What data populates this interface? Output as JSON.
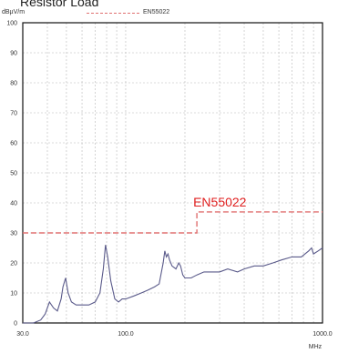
{
  "chart_data": {
    "type": "line",
    "title": "Resistor Load",
    "ylabel": "dBµV/m",
    "xlabel": "MHz",
    "xscale": "log",
    "xlim": [
      30.0,
      1000.0
    ],
    "ylim": [
      0,
      100
    ],
    "grid": true,
    "legend": {
      "position": "top",
      "entries": [
        "EN55022"
      ]
    },
    "x_tick_labels": [
      {
        "value": 30,
        "label": "30.0"
      },
      {
        "value": 100,
        "label": "100.0"
      },
      {
        "value": 1000,
        "label": "1000.0"
      }
    ],
    "y_ticks": [
      0,
      10,
      20,
      30,
      40,
      50,
      60,
      70,
      80,
      90,
      100
    ],
    "limit_label": "EN55022",
    "series": [
      {
        "name": "EN55022",
        "color": "#e07070",
        "style": "dashed",
        "x": [
          30,
          230,
          230,
          1000
        ],
        "y": [
          30,
          30,
          37,
          37
        ]
      },
      {
        "color": "#5a5a8a",
        "style": "solid",
        "x": [
          30,
          34,
          37,
          39,
          41,
          43,
          45,
          47,
          48,
          49.5,
          51,
          53,
          56,
          60,
          65,
          70,
          74,
          77,
          79,
          81,
          84,
          88,
          92,
          96,
          100,
          110,
          120,
          130,
          140,
          148,
          155,
          158,
          161,
          164,
          167,
          172,
          180,
          186,
          190,
          195,
          200,
          215,
          230,
          250,
          270,
          300,
          330,
          370,
          400,
          450,
          500,
          560,
          620,
          700,
          780,
          850,
          880,
          900,
          950,
          1000
        ],
        "y": [
          0,
          0,
          1,
          3,
          7,
          5,
          4,
          8,
          12,
          15,
          10,
          7,
          6,
          6,
          6,
          7,
          10,
          18,
          26,
          22,
          14,
          8,
          7,
          8,
          8,
          9,
          10,
          11,
          12,
          13,
          20,
          24,
          22,
          23,
          21,
          19,
          18,
          20,
          19,
          16,
          15,
          15,
          16,
          17,
          17,
          17,
          18,
          17,
          18,
          19,
          19,
          20,
          21,
          22,
          22,
          24,
          25,
          23,
          24,
          25
        ]
      }
    ]
  }
}
